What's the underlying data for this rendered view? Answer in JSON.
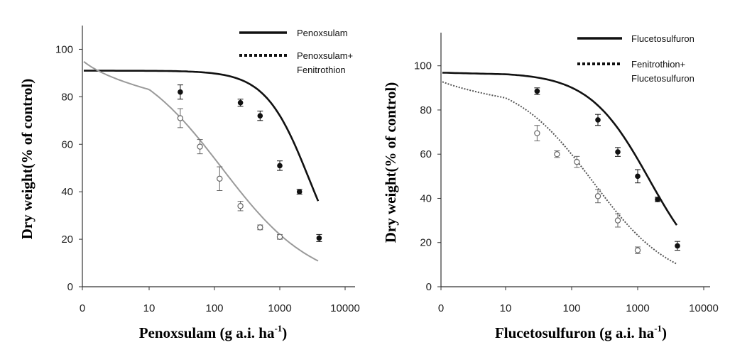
{
  "chart_data": [
    {
      "type": "line",
      "title": "",
      "ylabel": "Dry weight(% of control)",
      "xlabel_main": "Penoxsulam (g a.i. ha",
      "xlabel_sup": "-1",
      "xlabel_tail": ")",
      "x_ticks": [
        "0",
        "10",
        "100",
        "1000",
        "10000"
      ],
      "y_ticks": [
        "0",
        "20",
        "40",
        "60",
        "80",
        "100"
      ],
      "ylim": [
        0,
        110
      ],
      "legend_position": "top-right",
      "series": [
        {
          "name": "Penoxsulam",
          "style": "solid",
          "color": "#111111",
          "marker": "filled",
          "points": [
            {
              "x": 30,
              "y": 82,
              "err": 3
            },
            {
              "x": 250,
              "y": 77.5,
              "err": 1.5
            },
            {
              "x": 500,
              "y": 72,
              "err": 2
            },
            {
              "x": 1000,
              "y": 51,
              "err": 2
            },
            {
              "x": 2000,
              "y": 40,
              "err": 1
            },
            {
              "x": 4000,
              "y": 20.5,
              "err": 1.5
            }
          ],
          "curve": {
            "top": 91,
            "bottom": 0,
            "ed50": 2800,
            "slope": 1.3
          }
        },
        {
          "name": "Penoxsulam+",
          "name_line2": "Fenitrothion",
          "style": "dotted",
          "color": "#111111",
          "curve_color": "#9a9a9a",
          "marker": "open",
          "points": [
            {
              "x": 30,
              "y": 71,
              "err": 4
            },
            {
              "x": 60,
              "y": 59,
              "err": 3
            },
            {
              "x": 120,
              "y": 45.5,
              "err": 5
            },
            {
              "x": 250,
              "y": 34,
              "err": 2
            },
            {
              "x": 500,
              "y": 25,
              "err": 1
            },
            {
              "x": 1000,
              "y": 21,
              "err": 1
            }
          ],
          "curve": {
            "top": 100,
            "bottom": 0,
            "ed50": 130,
            "slope": 0.62
          }
        }
      ]
    },
    {
      "type": "line",
      "title": "",
      "ylabel": "Dry weight(% of control)",
      "xlabel_main": "Flucetosulfuron (g a.i. ha",
      "xlabel_sup": "-1",
      "xlabel_tail": ")",
      "x_ticks": [
        "0",
        "10",
        "100",
        "1000",
        "10000"
      ],
      "y_ticks": [
        "0",
        "20",
        "40",
        "60",
        "80",
        "100"
      ],
      "ylim": [
        0,
        115
      ],
      "legend_position": "top-right",
      "series": [
        {
          "name": "Flucetosulfuron",
          "style": "solid",
          "color": "#111111",
          "marker": "filled",
          "points": [
            {
              "x": 30,
              "y": 88.5,
              "err": 1.5
            },
            {
              "x": 250,
              "y": 75.5,
              "err": 2.5
            },
            {
              "x": 500,
              "y": 61,
              "err": 2
            },
            {
              "x": 1000,
              "y": 50,
              "err": 3
            },
            {
              "x": 2000,
              "y": 39.5,
              "err": 1
            },
            {
              "x": 4000,
              "y": 18.5,
              "err": 2
            }
          ],
          "curve": {
            "top": 97,
            "bottom": 0,
            "ed50": 1500,
            "slope": 0.95
          }
        },
        {
          "name": "Fenitrothion+",
          "name_line2": "Flucetosulfuron",
          "style": "dotted",
          "color": "#111111",
          "curve_color": "#555555",
          "marker": "open",
          "points": [
            {
              "x": 30,
              "y": 69.5,
              "err": 3.5
            },
            {
              "x": 60,
              "y": 60,
              "err": 1.5
            },
            {
              "x": 120,
              "y": 56.5,
              "err": 2.5
            },
            {
              "x": 250,
              "y": 41,
              "err": 3
            },
            {
              "x": 500,
              "y": 30,
              "err": 3
            },
            {
              "x": 1000,
              "y": 16.5,
              "err": 1.5
            }
          ],
          "curve": {
            "top": 95,
            "bottom": 0,
            "ed50": 210,
            "slope": 0.72
          }
        }
      ]
    }
  ]
}
